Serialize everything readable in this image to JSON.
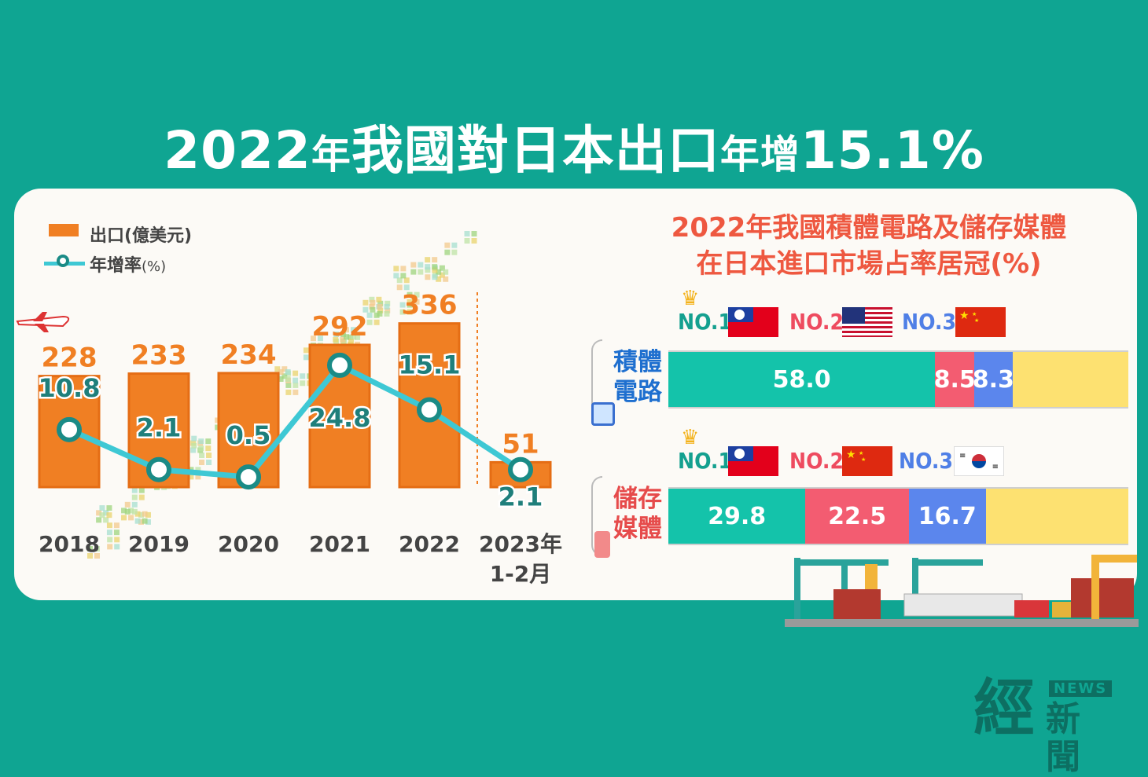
{
  "title": {
    "year": "2022",
    "year_suffix": "年",
    "mid": "我國對日本出口",
    "suffix_small": "年增",
    "value": "15.1%"
  },
  "legend": {
    "bar_label": "出口(億美元)",
    "line_label_main": "年增率",
    "line_label_unit": "(%)"
  },
  "chart_data": [
    {
      "type": "bar",
      "categories": [
        "2018",
        "2019",
        "2020",
        "2021",
        "2022",
        "2023年 1-2月"
      ],
      "category_lines": [
        [
          "2018"
        ],
        [
          "2019"
        ],
        [
          "2020"
        ],
        [
          "2021"
        ],
        [
          "2022"
        ],
        [
          "2023年",
          "1-2月"
        ]
      ],
      "series": [
        {
          "name": "出口(億美元)",
          "type": "bar",
          "values": [
            228,
            233,
            234,
            292,
            336,
            51
          ],
          "color": "#f07f23"
        },
        {
          "name": "年增率(%)",
          "type": "line",
          "values": [
            10.8,
            2.1,
            0.5,
            24.8,
            15.1,
            2.1
          ],
          "color": "#3ec8d4"
        }
      ]
    },
    {
      "type": "bar",
      "title_line1": "2022年我國積體電路及儲存媒體",
      "title_line2": "在日本進口市場占率居冠(%)",
      "rows": [
        {
          "label_lines": [
            "積體",
            "電路"
          ],
          "ranks": [
            "NO.1",
            "NO.2",
            "NO.3"
          ],
          "flags": [
            "taiwan-flag",
            "usa-flag",
            "china-flag"
          ],
          "values": [
            58.0,
            8.5,
            8.3
          ],
          "labels": [
            "58.0",
            "8.5",
            "8.3"
          ]
        },
        {
          "label_lines": [
            "儲存",
            "媒體"
          ],
          "ranks": [
            "NO.1",
            "NO.2",
            "NO.3"
          ],
          "flags": [
            "taiwan-flag",
            "china-flag",
            "korea-flag"
          ],
          "values": [
            29.8,
            22.5,
            16.7
          ],
          "labels": [
            "29.8",
            "22.5",
            "16.7"
          ]
        }
      ],
      "colors": [
        "#14c3aa",
        "#f35c71",
        "#5b86ed",
        "#fde171"
      ],
      "rank_colors": [
        "#14a08f",
        "#ee4b5f",
        "#4f7fe6"
      ]
    }
  ],
  "logo": {
    "main": "經",
    "badge": "NEWS",
    "sub": "新聞"
  }
}
